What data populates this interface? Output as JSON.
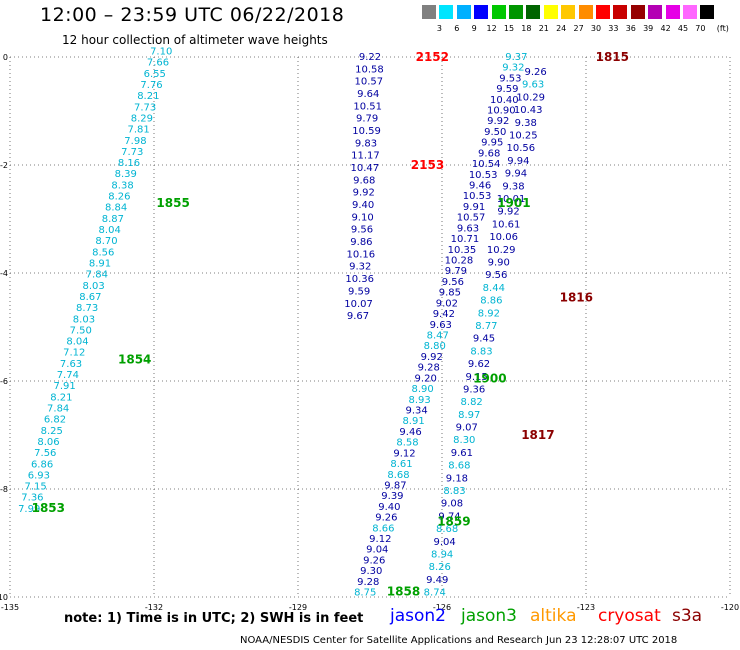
{
  "header": {
    "title": "12:00 – 23:59 UTC 06/22/2018",
    "subtitle": "12 hour collection of altimeter wave heights"
  },
  "colorbar": {
    "unit": "(ft)",
    "labels": [
      "3",
      "6",
      "9",
      "12",
      "15",
      "18",
      "21",
      "24",
      "27",
      "30",
      "33",
      "36",
      "39",
      "42",
      "45",
      "70"
    ],
    "colors": [
      "#808080",
      "#00e5ff",
      "#00b0ff",
      "#0000ff",
      "#00c800",
      "#009600",
      "#006400",
      "#ffff00",
      "#ffc800",
      "#ff8c00",
      "#ff0000",
      "#c80000",
      "#960000",
      "#b400b4",
      "#e600e6",
      "#ff66ff",
      "#000000"
    ]
  },
  "chart_data": {
    "type": "scatter",
    "title": "12:00 – 23:59 UTC 06/22/2018",
    "xlabel": "",
    "ylabel": "",
    "xlim": [
      -135,
      -120
    ],
    "ylim": [
      -10,
      0
    ],
    "x_ticks": [
      "-135",
      "-132",
      "-129",
      "-126",
      "-123",
      "-120"
    ],
    "y_ticks": [
      "0",
      "-2",
      "-4",
      "-6",
      "-8",
      "-10"
    ],
    "grid": true,
    "track_a": {
      "x0": -131.85,
      "y0": 0.12,
      "x1": -134.6,
      "y1": -8.35,
      "color_light": "#00b4d2",
      "color_dark": "#0000a0",
      "values": [
        "7.10",
        "7.66",
        "6.55",
        "7.76",
        "8.21",
        "7.73",
        "8.29",
        "7.81",
        "7.98",
        "7.73",
        "8.16",
        "8.39",
        "8.38",
        "8.26",
        "8.84",
        "8.87",
        "8.04",
        "8.70",
        "8.56",
        "8.91",
        "7.84",
        "8.03",
        "8.67",
        "8.73",
        "8.03",
        "7.50",
        "8.04",
        "7.12",
        "7.63",
        "7.74",
        "7.91",
        "8.21",
        "7.84",
        "6.82",
        "8.25",
        "8.06",
        "7.56",
        "6.86",
        "6.93",
        "7.15",
        "7.36",
        "7.99"
      ],
      "colors": [
        "c",
        "c",
        "c",
        "c",
        "c",
        "c",
        "c",
        "c",
        "c",
        "c",
        "c",
        "c",
        "c",
        "c",
        "c",
        "c",
        "c",
        "c",
        "c",
        "c",
        "c",
        "c",
        "c",
        "c",
        "c",
        "c",
        "c",
        "c",
        "c",
        "c",
        "c",
        "c",
        "c",
        "c",
        "c",
        "c",
        "c",
        "c",
        "c",
        "c",
        "c",
        "c"
      ]
    },
    "track_b": {
      "x0": -127.5,
      "y0": 0.02,
      "x1": -127.75,
      "y1": -4.78,
      "values": [
        "9.22",
        "10.58",
        "10.57",
        "9.64",
        "10.51",
        "9.79",
        "10.59",
        "9.83",
        "11.17",
        "10.47",
        "9.68",
        "9.92",
        "9.40",
        "9.10",
        "9.56",
        "9.86",
        "10.16",
        "9.32",
        "10.36",
        "9.59",
        "10.07",
        "9.67"
      ],
      "colors": [
        "b",
        "b",
        "b",
        "b",
        "b",
        "b",
        "b",
        "b",
        "b",
        "b",
        "b",
        "b",
        "b",
        "b",
        "b",
        "b",
        "b",
        "b",
        "b",
        "b",
        "b",
        "b"
      ]
    },
    "track_c": {
      "x0": -124.45,
      "y0": 0.02,
      "x1": -127.6,
      "y1": -9.9,
      "values": [
        "9.37",
        "9.32",
        "9.53",
        "9.59",
        "10.40",
        "10.90",
        "9.92",
        "9.50",
        "9.95",
        "9.68",
        "10.54",
        "10.53",
        "9.46",
        "10.53",
        "9.91",
        "10.57",
        "9.63",
        "10.71",
        "10.35",
        "10.28",
        "9.79",
        "9.56",
        "9.85",
        "9.02",
        "9.42",
        "9.63",
        "8.47",
        "8.80",
        "9.92",
        "9.28",
        "9.20",
        "8.90",
        "8.93",
        "9.34",
        "8.91",
        "9.46",
        "8.58",
        "9.12",
        "8.61",
        "8.68",
        "9.87",
        "9.39",
        "9.40",
        "9.26",
        "8.66",
        "9.12",
        "9.04",
        "9.26",
        "9.30",
        "9.28",
        "8.75"
      ],
      "colors": [
        "c",
        "c",
        "b",
        "b",
        "b",
        "b",
        "b",
        "b",
        "b",
        "b",
        "b",
        "b",
        "b",
        "b",
        "b",
        "b",
        "b",
        "b",
        "b",
        "b",
        "b",
        "b",
        "b",
        "b",
        "b",
        "b",
        "c",
        "c",
        "b",
        "b",
        "b",
        "c",
        "c",
        "b",
        "c",
        "b",
        "c",
        "b",
        "c",
        "c",
        "b",
        "b",
        "b",
        "b",
        "c",
        "b",
        "b",
        "b",
        "b",
        "b",
        "c"
      ]
    },
    "track_d": {
      "x0": -124.05,
      "y0": -0.26,
      "x1": -126.15,
      "y1": -9.9,
      "values": [
        "9.26",
        "9.63",
        "10.29",
        "10.43",
        "9.38",
        "10.25",
        "10.56",
        "9.94",
        "9.94",
        "9.38",
        "10.01",
        "9.92",
        "10.61",
        "10.06",
        "10.29",
        "9.90",
        "9.56",
        "8.44",
        "8.86",
        "8.92",
        "8.77",
        "9.45",
        "8.83",
        "9.62",
        "9.15",
        "9.36",
        "8.82",
        "8.97",
        "9.07",
        "8.30",
        "9.61",
        "8.68",
        "9.18",
        "8.83",
        "9.08",
        "9.74",
        "8.68",
        "9.04",
        "8.94",
        "8.26",
        "9.49",
        "8.74"
      ],
      "colors": [
        "b",
        "c",
        "b",
        "b",
        "b",
        "b",
        "b",
        "b",
        "b",
        "b",
        "b",
        "b",
        "b",
        "b",
        "b",
        "b",
        "b",
        "c",
        "c",
        "c",
        "c",
        "b",
        "c",
        "b",
        "b",
        "b",
        "c",
        "c",
        "b",
        "c",
        "b",
        "c",
        "b",
        "c",
        "b",
        "b",
        "c",
        "b",
        "c",
        "c",
        "b",
        "c"
      ]
    },
    "time_labels": [
      {
        "text": "2152",
        "x": -126.55,
        "y": 0.0,
        "color": "#ff0000"
      },
      {
        "text": "2153",
        "x": -126.65,
        "y": -2.0,
        "color": "#ff0000"
      },
      {
        "text": "1815",
        "x": -122.8,
        "y": 0.0,
        "color": "#8b0000"
      },
      {
        "text": "1816",
        "x": -123.55,
        "y": -4.45,
        "color": "#8b0000"
      },
      {
        "text": "1817",
        "x": -124.35,
        "y": -7.0,
        "color": "#8b0000"
      },
      {
        "text": "1901",
        "x": -124.85,
        "y": -2.7,
        "color": "#00a000"
      },
      {
        "text": "1900",
        "x": -125.35,
        "y": -5.95,
        "color": "#00a000"
      },
      {
        "text": "1859",
        "x": -126.1,
        "y": -8.6,
        "color": "#00a000"
      },
      {
        "text": "1858",
        "x": -127.15,
        "y": -9.9,
        "color": "#00a000"
      },
      {
        "text": "1855",
        "x": -131.95,
        "y": -2.7,
        "color": "#00a000"
      },
      {
        "text": "1854",
        "x": -132.75,
        "y": -5.6,
        "color": "#00a000"
      },
      {
        "text": "1853",
        "x": -134.55,
        "y": -8.35,
        "color": "#00a000"
      }
    ]
  },
  "note": "note:  1)  Time is in UTC;  2)  SWH is in feet",
  "satellites": [
    {
      "name": "jason2",
      "color": "#0000ff"
    },
    {
      "name": "jason3",
      "color": "#00a000"
    },
    {
      "name": "altika",
      "color": "#ff9900"
    },
    {
      "name": "cryosat",
      "color": "#ff0000"
    },
    {
      "name": "s3a",
      "color": "#8b0000"
    }
  ],
  "footer": "NOAA/NESDIS Center for Satellite Applications and Research    Jun 23 12:28:07 UTC 2018"
}
